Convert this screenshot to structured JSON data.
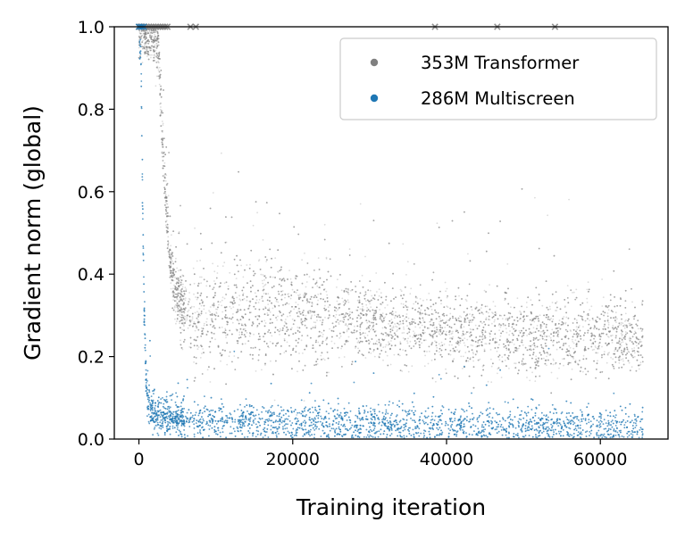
{
  "chart_data": {
    "type": "scatter",
    "xlabel": "Training iteration",
    "ylabel": "Gradient norm (global)",
    "xlim": [
      -3200,
      68800
    ],
    "ylim": [
      0.0,
      1.0
    ],
    "x_ticks": [
      0,
      20000,
      40000,
      60000
    ],
    "x_tick_labels": [
      "0",
      "20000",
      "40000",
      "60000"
    ],
    "y_ticks": [
      0.0,
      0.2,
      0.4,
      0.6,
      0.8,
      1.0
    ],
    "y_tick_labels": [
      "0.0",
      "0.2",
      "0.4",
      "0.6",
      "0.8",
      "1.0"
    ],
    "grid": false,
    "legend_position": "top-right",
    "series": [
      {
        "name": "353M Transformer",
        "color": "#808080",
        "x_range": [
          0,
          65536
        ],
        "clipped_at_top_x": [
          0,
          200,
          400,
          700,
          1000,
          1300,
          1600,
          1900,
          2200,
          2500,
          2800,
          3100,
          3400,
          3700,
          6700,
          7400,
          38500,
          46600,
          54100
        ],
        "trend": [
          {
            "x": 0,
            "y": 1.0
          },
          {
            "x": 2500,
            "y": 0.95
          },
          {
            "x": 3000,
            "y": 0.75
          },
          {
            "x": 3500,
            "y": 0.58
          },
          {
            "x": 4000,
            "y": 0.45
          },
          {
            "x": 4500,
            "y": 0.38
          },
          {
            "x": 5000,
            "y": 0.34
          },
          {
            "x": 6000,
            "y": 0.31
          },
          {
            "x": 7000,
            "y": 0.275
          },
          {
            "x": 10000,
            "y": 0.3
          },
          {
            "x": 14000,
            "y": 0.31
          },
          {
            "x": 20000,
            "y": 0.3
          },
          {
            "x": 30000,
            "y": 0.28
          },
          {
            "x": 40000,
            "y": 0.265
          },
          {
            "x": 50000,
            "y": 0.25
          },
          {
            "x": 60000,
            "y": 0.245
          },
          {
            "x": 65536,
            "y": 0.24
          }
        ]
      },
      {
        "name": "286M Multiscreen",
        "color": "#1f77b4",
        "x_range": [
          0,
          65536
        ],
        "clipped_at_top_x": [
          0,
          300,
          600
        ],
        "trend": [
          {
            "x": 0,
            "y": 1.0
          },
          {
            "x": 300,
            "y": 0.9
          },
          {
            "x": 500,
            "y": 0.55
          },
          {
            "x": 700,
            "y": 0.3
          },
          {
            "x": 900,
            "y": 0.15
          },
          {
            "x": 1200,
            "y": 0.08
          },
          {
            "x": 2000,
            "y": 0.055
          },
          {
            "x": 5000,
            "y": 0.05
          },
          {
            "x": 20000,
            "y": 0.04
          },
          {
            "x": 40000,
            "y": 0.035
          },
          {
            "x": 65536,
            "y": 0.03
          }
        ]
      }
    ]
  }
}
